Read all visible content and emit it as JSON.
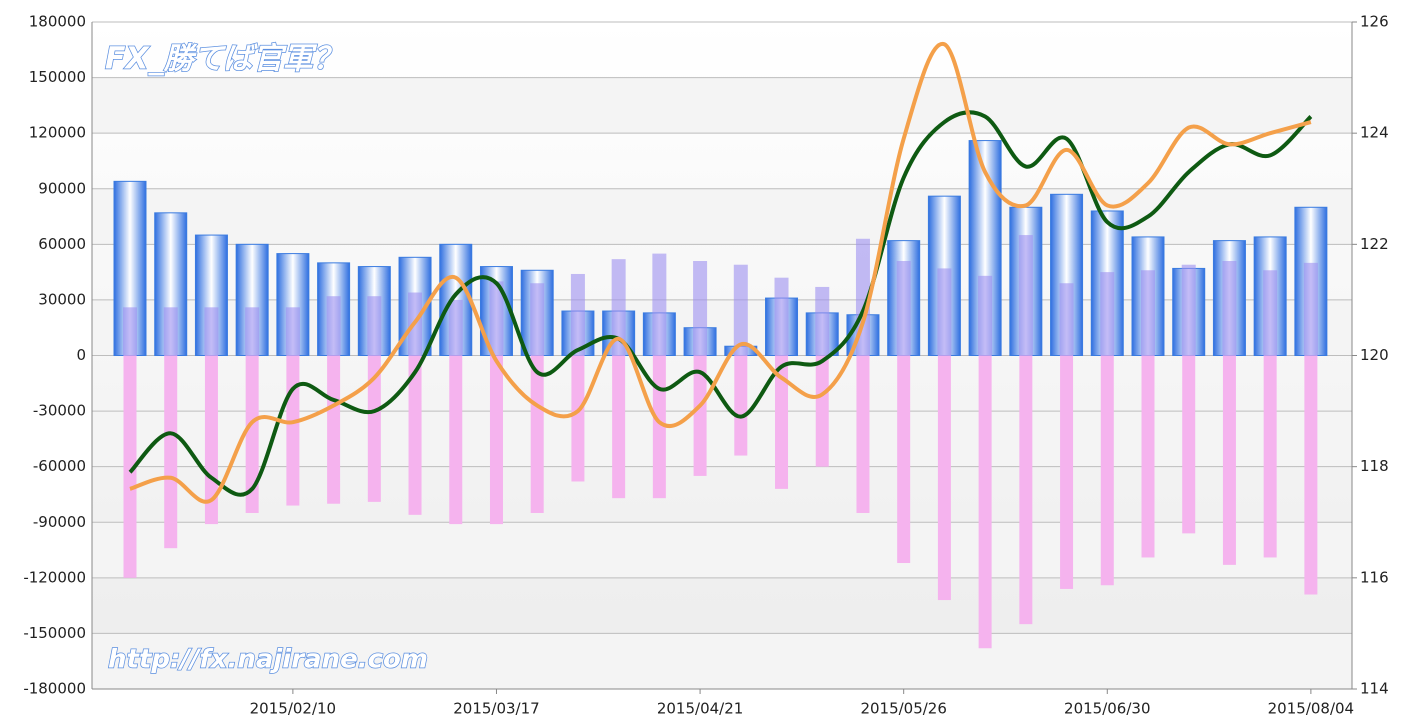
{
  "chart_data": {
    "type": "combo",
    "title": "FX_勝てば官軍？",
    "annotation": "http://fx.najirane.com",
    "categories": [
      null,
      null,
      null,
      null,
      "2015/02/10",
      null,
      null,
      null,
      null,
      "2015/03/17",
      null,
      null,
      null,
      null,
      "2015/04/21",
      null,
      null,
      null,
      null,
      "2015/05/26",
      null,
      null,
      null,
      null,
      "2015/06/30",
      null,
      null,
      null,
      null,
      "2015/08/04"
    ],
    "ylim": [
      -180000,
      180000
    ],
    "yticks": [
      -180000,
      -150000,
      -120000,
      -90000,
      -60000,
      -30000,
      0,
      30000,
      60000,
      90000,
      120000,
      150000,
      180000
    ],
    "y2lim": [
      114,
      126
    ],
    "y2ticks": [
      114,
      116,
      118,
      120,
      122,
      124,
      126
    ],
    "grid": true,
    "series": [
      {
        "type": "bar",
        "color": "#3a7be0",
        "values": [
          94000,
          77000,
          65000,
          60000,
          55000,
          50000,
          48000,
          53000,
          60000,
          48000,
          46000,
          24000,
          24000,
          23000,
          15000,
          5000,
          31000,
          23000,
          22000,
          62000,
          86000,
          116000,
          80000,
          87000,
          78000,
          64000,
          47000,
          62000,
          64000,
          80000
        ]
      },
      {
        "type": "bar",
        "color": "#9c8ff0",
        "values": [
          26000,
          26000,
          26000,
          26000,
          26000,
          32000,
          32000,
          34000,
          30000,
          40000,
          39000,
          44000,
          52000,
          55000,
          51000,
          49000,
          42000,
          37000,
          63000,
          51000,
          47000,
          43000,
          65000,
          39000,
          45000,
          46000,
          49000,
          51000,
          46000,
          50000
        ]
      },
      {
        "type": "bar",
        "color": "#f5b3ee",
        "values": [
          -120000,
          -104000,
          -91000,
          -85000,
          -81000,
          -80000,
          -79000,
          -86000,
          -91000,
          -91000,
          -85000,
          -68000,
          -77000,
          -77000,
          -65000,
          -54000,
          -72000,
          -60000,
          -85000,
          -112000,
          -132000,
          -158000,
          -145000,
          -126000,
          -124000,
          -109000,
          -96000,
          -113000,
          -109000,
          -129000
        ]
      },
      {
        "type": "line",
        "axis": "y2",
        "color": "#0e5a12",
        "values": [
          117.9,
          118.6,
          117.8,
          117.6,
          119.4,
          119.2,
          119.0,
          119.7,
          121.1,
          121.3,
          119.7,
          120.1,
          120.3,
          119.4,
          119.7,
          118.9,
          119.8,
          119.9,
          120.8,
          123.2,
          124.2,
          124.3,
          123.4,
          123.9,
          122.4,
          122.5,
          123.3,
          123.8,
          123.6,
          124.3
        ]
      },
      {
        "type": "line",
        "axis": "y2",
        "color": "#f4a04a",
        "values": [
          117.6,
          117.8,
          117.4,
          118.8,
          118.8,
          119.1,
          119.6,
          120.6,
          121.4,
          119.9,
          119.1,
          119.0,
          120.3,
          118.8,
          119.1,
          120.2,
          119.6,
          119.3,
          120.6,
          123.9,
          125.6,
          123.3,
          122.7,
          123.7,
          122.7,
          123.1,
          124.1,
          123.8,
          124.0,
          124.2
        ]
      }
    ]
  }
}
